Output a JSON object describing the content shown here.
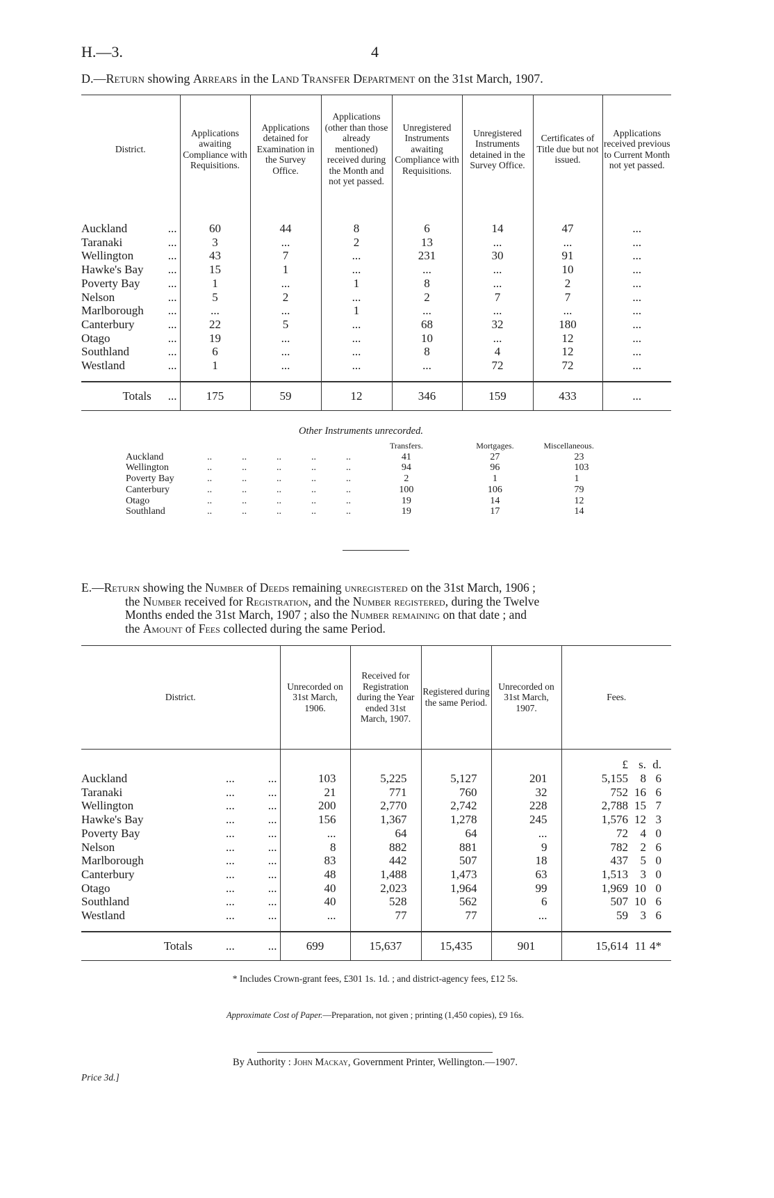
{
  "page": {
    "ref": "H.—3.",
    "number": "4"
  },
  "table_d": {
    "title_prefix": "D.—",
    "title_parts": [
      {
        "text": "Return",
        "sc": true
      },
      {
        "text": " showing ",
        "sc": false
      },
      {
        "text": "Arrears",
        "sc": true
      },
      {
        "text": " in the ",
        "sc": false
      },
      {
        "text": "Land Transfer Department",
        "sc": true
      },
      {
        "text": " on the 31st March, 1907.",
        "sc": false
      }
    ],
    "headers": [
      "District.",
      "Applications awaiting Compliance with Requisitions.",
      "Applications detained for Examination in the Survey Office.",
      "Applications (other than those already mentioned) received during the Month and not yet passed.",
      "Unregistered Instruments awaiting Compliance with Requisitions.",
      "Unregistered Instruments detained in the Survey Office.",
      "Certificates of Title due but not issued.",
      "Applications received previous to Current Month not yet passed."
    ],
    "leader": "...",
    "rows": [
      {
        "district": "Auckland",
        "values": [
          "60",
          "44",
          "8",
          "6",
          "14",
          "47",
          "..."
        ]
      },
      {
        "district": "Taranaki",
        "values": [
          "3",
          "...",
          "2",
          "13",
          "...",
          "...",
          "..."
        ]
      },
      {
        "district": "Wellington",
        "values": [
          "43",
          "7",
          "...",
          "231",
          "30",
          "91",
          "..."
        ]
      },
      {
        "district": "Hawke's Bay",
        "values": [
          "15",
          "1",
          "...",
          "...",
          "...",
          "10",
          "..."
        ]
      },
      {
        "district": "Poverty Bay",
        "values": [
          "1",
          "...",
          "1",
          "8",
          "...",
          "2",
          "..."
        ]
      },
      {
        "district": "Nelson",
        "values": [
          "5",
          "2",
          "...",
          "2",
          "7",
          "7",
          "..."
        ]
      },
      {
        "district": "Marlborough",
        "values": [
          "...",
          "...",
          "1",
          "...",
          "...",
          "...",
          "..."
        ]
      },
      {
        "district": "Canterbury",
        "values": [
          "22",
          "5",
          "...",
          "68",
          "32",
          "180",
          "..."
        ]
      },
      {
        "district": "Otago",
        "values": [
          "19",
          "...",
          "...",
          "10",
          "...",
          "12",
          "..."
        ]
      },
      {
        "district": "Southland",
        "values": [
          "6",
          "...",
          "...",
          "8",
          "4",
          "12",
          "..."
        ]
      },
      {
        "district": "Westland",
        "values": [
          "1",
          "...",
          "...",
          "...",
          "72",
          "72",
          "..."
        ]
      }
    ],
    "totals": {
      "label": "Totals",
      "values": [
        "175",
        "59",
        "12",
        "346",
        "159",
        "433",
        "..."
      ]
    }
  },
  "other_instruments": {
    "title": "Other Instruments unrecorded.",
    "headers": [
      "Transfers.",
      "Mortgages.",
      "Miscellaneous."
    ],
    "leader": "..",
    "rows": [
      {
        "district": "Auckland",
        "values": [
          "41",
          "27",
          "23"
        ]
      },
      {
        "district": "Wellington",
        "values": [
          "94",
          "96",
          "103"
        ]
      },
      {
        "district": "Poverty Bay",
        "values": [
          "2",
          "1",
          "1"
        ]
      },
      {
        "district": "Canterbury",
        "values": [
          "100",
          "106",
          "79"
        ]
      },
      {
        "district": "Otago",
        "values": [
          "19",
          "14",
          "12"
        ]
      },
      {
        "district": "Southland",
        "values": [
          "19",
          "17",
          "14"
        ]
      }
    ]
  },
  "table_e": {
    "title_lines": [
      [
        {
          "text": "E.—",
          "sc": false
        },
        {
          "text": "Return",
          "sc": true
        },
        {
          "text": " showing the ",
          "sc": false
        },
        {
          "text": "Number",
          "sc": true
        },
        {
          "text": " of ",
          "sc": false
        },
        {
          "text": "Deeds",
          "sc": true
        },
        {
          "text": " remaining ",
          "sc": false
        },
        {
          "text": "unregistered",
          "sc": true
        },
        {
          "text": " on the 31st March, 1906 ;",
          "sc": false
        }
      ],
      [
        {
          "text": "the ",
          "sc": false
        },
        {
          "text": "Number",
          "sc": true
        },
        {
          "text": " received for ",
          "sc": false
        },
        {
          "text": "Registration",
          "sc": true
        },
        {
          "text": ", and the ",
          "sc": false
        },
        {
          "text": "Number registered",
          "sc": true
        },
        {
          "text": ", during the Twelve",
          "sc": false
        }
      ],
      [
        {
          "text": "Months ended the 31st March, 1907 ;  also the ",
          "sc": false
        },
        {
          "text": "Number remaining",
          "sc": true
        },
        {
          "text": " on that date ;  and",
          "sc": false
        }
      ],
      [
        {
          "text": "the ",
          "sc": false
        },
        {
          "text": "Amount",
          "sc": true
        },
        {
          "text": " of ",
          "sc": false
        },
        {
          "text": "Fees",
          "sc": true
        },
        {
          "text": " collected during the same Period.",
          "sc": false
        }
      ]
    ],
    "headers": [
      "District.",
      "Unrecorded on 31st March, 1906.",
      "Received for Registration during the Year ended 31st March, 1907.",
      "Registered during the same Period.",
      "Unrecorded on 31st March, 1907.",
      "Fees."
    ],
    "fee_units": [
      "£",
      "s.",
      "d."
    ],
    "leader": "...",
    "rows": [
      {
        "district": "Auckland",
        "values": [
          "103",
          "5,225",
          "5,127",
          "201"
        ],
        "fees": [
          "5,155",
          "8",
          "6"
        ]
      },
      {
        "district": "Taranaki",
        "values": [
          "21",
          "771",
          "760",
          "32"
        ],
        "fees": [
          "752",
          "16",
          "6"
        ]
      },
      {
        "district": "Wellington",
        "values": [
          "200",
          "2,770",
          "2,742",
          "228"
        ],
        "fees": [
          "2,788",
          "15",
          "7"
        ]
      },
      {
        "district": "Hawke's Bay",
        "values": [
          "156",
          "1,367",
          "1,278",
          "245"
        ],
        "fees": [
          "1,576",
          "12",
          "3"
        ]
      },
      {
        "district": "Poverty Bay",
        "values": [
          "...",
          "64",
          "64",
          "..."
        ],
        "fees": [
          "72",
          "4",
          "0"
        ]
      },
      {
        "district": "Nelson",
        "values": [
          "8",
          "882",
          "881",
          "9"
        ],
        "fees": [
          "782",
          "2",
          "6"
        ]
      },
      {
        "district": "Marlborough",
        "values": [
          "83",
          "442",
          "507",
          "18"
        ],
        "fees": [
          "437",
          "5",
          "0"
        ]
      },
      {
        "district": "Canterbury",
        "values": [
          "48",
          "1,488",
          "1,473",
          "63"
        ],
        "fees": [
          "1,513",
          "3",
          "0"
        ]
      },
      {
        "district": "Otago",
        "values": [
          "40",
          "2,023",
          "1,964",
          "99"
        ],
        "fees": [
          "1,969",
          "10",
          "0"
        ]
      },
      {
        "district": "Southland",
        "values": [
          "40",
          "528",
          "562",
          "6"
        ],
        "fees": [
          "507",
          "10",
          "6"
        ]
      },
      {
        "district": "Westland",
        "values": [
          "...",
          "77",
          "77",
          "..."
        ],
        "fees": [
          "59",
          "3",
          "6"
        ]
      }
    ],
    "totals": {
      "label": "Totals",
      "values": [
        "699",
        "15,637",
        "15,435",
        "901"
      ],
      "fees": [
        "15,614",
        "11",
        "4*"
      ]
    }
  },
  "footnote": "* Includes Crown-grant fees, £301 1s. 1d. ;  and district-agency fees, £12 5s.",
  "cost": {
    "label": "Approximate Cost of Paper.",
    "text": "—Preparation, not given ; printing (1,450 copies), £9 16s."
  },
  "authority": [
    {
      "text": "By Authority :  ",
      "sc": false
    },
    {
      "text": "John Mackay",
      "sc": true
    },
    {
      "text": ", Government Printer, Wellington.—1907.",
      "sc": false
    }
  ],
  "price": "Price 3d.]"
}
